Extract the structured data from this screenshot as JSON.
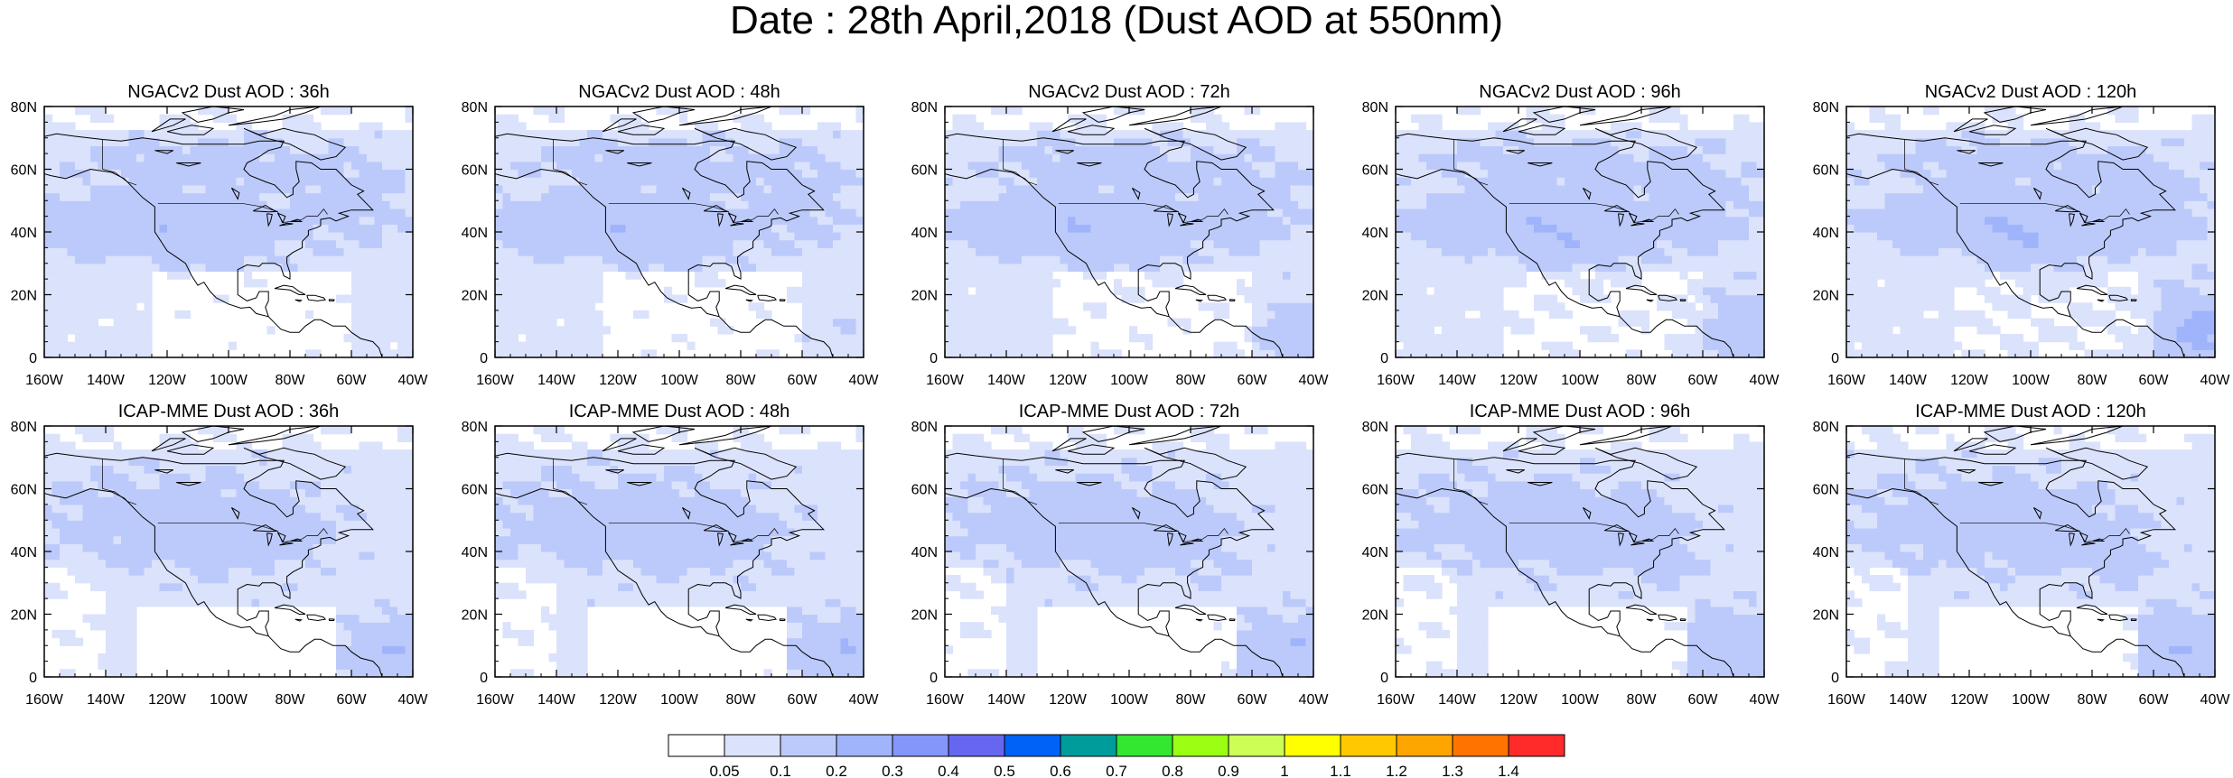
{
  "title": "Date : 28th April,2018 (Dust AOD at 550nm)",
  "chart_data": {
    "type": "heatmap",
    "title": "Date : 28th April,2018 (Dust AOD at 550nm)",
    "region": {
      "lon_range": [
        -160,
        -40
      ],
      "lat_range": [
        0,
        80
      ]
    },
    "x_ticks": [
      "160W",
      "140W",
      "120W",
      "100W",
      "80W",
      "60W",
      "40W"
    ],
    "y_ticks": [
      "0",
      "20N",
      "40N",
      "60N",
      "80N"
    ],
    "colorbar": {
      "levels": [
        "0.05",
        "0.1",
        "0.2",
        "0.3",
        "0.4",
        "0.5",
        "0.6",
        "0.7",
        "0.8",
        "0.9",
        "1",
        "1.1",
        "1.2",
        "1.3",
        "1.4"
      ],
      "colors": [
        "#ffffff",
        "#dbe2fb",
        "#bccafb",
        "#a0b4fb",
        "#8496fa",
        "#6666f0",
        "#0062f6",
        "#009b9b",
        "#32e632",
        "#9bff14",
        "#ccff55",
        "#ffff00",
        "#ffc800",
        "#ffa500",
        "#ff7400",
        "#ff2a2a"
      ]
    },
    "panels": [
      {
        "title": "NGACv2 Dust AOD : 36h",
        "model": "NGACv2",
        "lead": "36h"
      },
      {
        "title": "NGACv2 Dust AOD : 48h",
        "model": "NGACv2",
        "lead": "48h"
      },
      {
        "title": "NGACv2 Dust AOD : 72h",
        "model": "NGACv2",
        "lead": "72h"
      },
      {
        "title": "NGACv2 Dust AOD : 96h",
        "model": "NGACv2",
        "lead": "96h"
      },
      {
        "title": "NGACv2 Dust AOD : 120h",
        "model": "NGACv2",
        "lead": "120h"
      },
      {
        "title": "ICAP-MME Dust AOD : 36h",
        "model": "ICAP-MME",
        "lead": "36h"
      },
      {
        "title": "ICAP-MME Dust AOD : 48h",
        "model": "ICAP-MME",
        "lead": "48h"
      },
      {
        "title": "ICAP-MME Dust AOD : 72h",
        "model": "ICAP-MME",
        "lead": "72h"
      },
      {
        "title": "ICAP-MME Dust AOD : 96h",
        "model": "ICAP-MME",
        "lead": "96h"
      },
      {
        "title": "ICAP-MME Dust AOD : 120h",
        "model": "ICAP-MME",
        "lead": "120h"
      }
    ]
  }
}
